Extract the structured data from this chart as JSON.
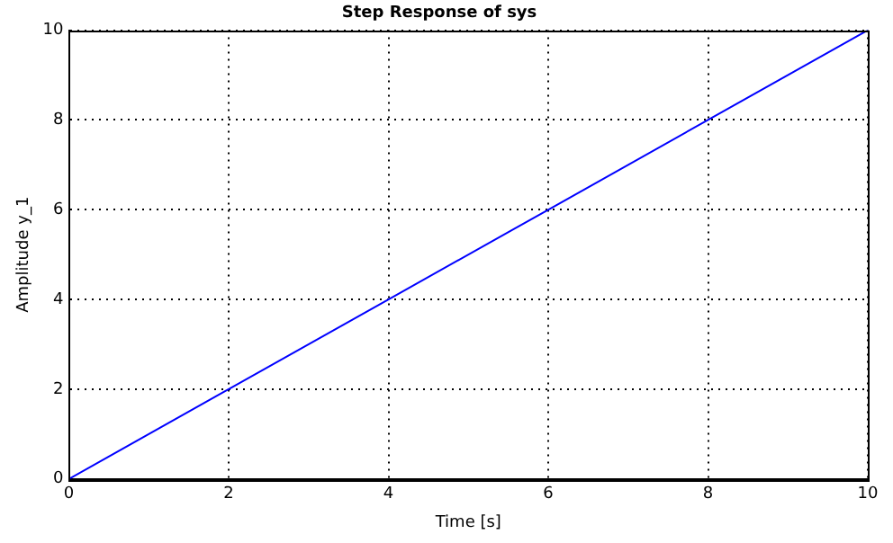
{
  "chart_data": {
    "type": "line",
    "title": "Step Response of sys",
    "xlabel": "Time [s]",
    "ylabel": "Amplitude y_1",
    "x": [
      0,
      2,
      4,
      6,
      8,
      10
    ],
    "series": [
      {
        "color": "#0000ff",
        "values": [
          0,
          2,
          4,
          6,
          8,
          10
        ]
      }
    ],
    "xlim": [
      0,
      10
    ],
    "xticks": [
      0,
      2,
      4,
      6,
      8,
      10
    ],
    "ylim": [
      0,
      10
    ],
    "yticks": [
      0,
      2,
      4,
      6,
      8,
      10
    ],
    "grid": true,
    "legend": false,
    "marker": "none",
    "line_style": "solid"
  }
}
